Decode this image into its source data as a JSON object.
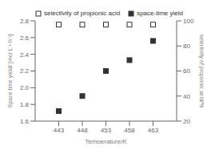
{
  "chart_data": {
    "type": "scatter",
    "xlabel": "Temperature/K",
    "ylabel": "Space time yield/ [mol·L⁻¹·h⁻¹]",
    "y2label": "selectivity of propionic acid/%",
    "x": [
      443,
      448,
      453,
      458,
      463
    ],
    "series": [
      {
        "name": "selectivity of propionic acid",
        "color": "#333333",
        "marker": "open_square",
        "axis": "y2",
        "values": [
          97,
          97,
          97,
          97,
          97
        ]
      },
      {
        "name": "space-time yield",
        "color": "#333333",
        "marker": "square",
        "axis": "y",
        "values": [
          1.72,
          1.9,
          2.2,
          2.33,
          2.56
        ]
      }
    ],
    "xlim": [
      438,
      468
    ],
    "xticks": [
      443,
      448,
      453,
      458,
      463
    ],
    "ylim": [
      1.6,
      2.8
    ],
    "yticks": [
      1.6,
      1.8,
      {
        "value": 2,
        "label": "2.0"
      },
      2.2,
      2.4,
      2.6,
      2.8
    ],
    "y2lim": [
      20,
      100
    ],
    "y2ticks": [
      20,
      40,
      60,
      80,
      100
    ],
    "legend": "upper left",
    "grid": false
  }
}
